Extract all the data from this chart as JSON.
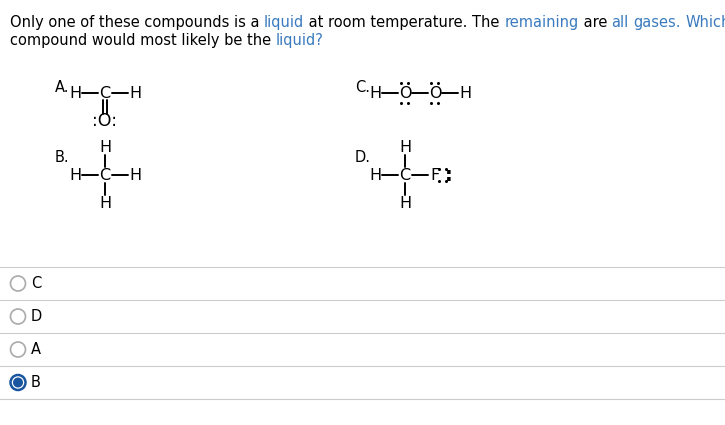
{
  "bg_color": "#ffffff",
  "question_color": "#000000",
  "highlight_color": "#3a7bbf",
  "seg1": [
    [
      "Only one of these compounds is a ",
      "#000000"
    ],
    [
      "liquid",
      "#3a7bbf"
    ],
    [
      " at room temperature. The ",
      "#000000"
    ],
    [
      "remaining",
      "#3a7bbf"
    ],
    [
      " are ",
      "#000000"
    ],
    [
      "all",
      "#3a7bbf"
    ],
    [
      " ",
      "#000000"
    ],
    [
      "gases.",
      "#3a7bbf"
    ],
    [
      " ",
      "#000000"
    ],
    [
      "Which",
      "#3a7bbf"
    ]
  ],
  "seg2": [
    [
      "compound would most likely be the ",
      "#000000"
    ],
    [
      "liquid?",
      "#3a7bbf"
    ]
  ],
  "divider_color": "#cccccc",
  "options": [
    "C",
    "D",
    "A",
    "B"
  ],
  "selected_option": "B",
  "radio_color_selected": "#1a56a0",
  "radio_color_unselected": "#aaaaaa",
  "option_label_color": "#000000",
  "mol_color": "#000000",
  "fs_mol": 11.5,
  "fs_label": 10.5,
  "fs_q": 10.5
}
